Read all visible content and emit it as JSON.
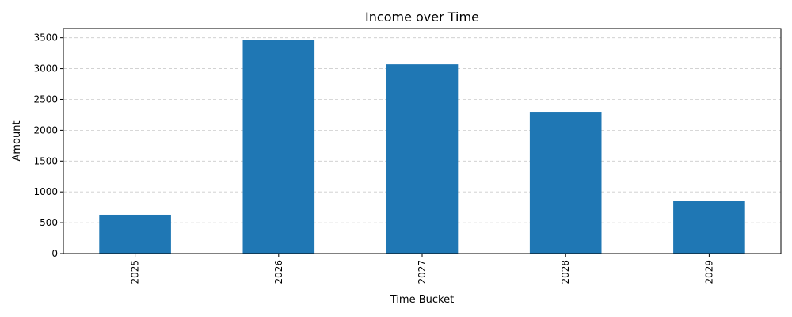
{
  "chart_data": {
    "type": "bar",
    "title": "Income over Time",
    "xlabel": "Time Bucket",
    "ylabel": "Amount",
    "categories": [
      "2025",
      "2026",
      "2027",
      "2028",
      "2029"
    ],
    "values": [
      630,
      3470,
      3070,
      2300,
      850
    ],
    "ylim": [
      0,
      3650
    ],
    "yticks": [
      0,
      500,
      1000,
      1500,
      2000,
      2500,
      3000,
      3500
    ],
    "ytick_labels": [
      "0",
      "500",
      "1000",
      "1500",
      "2000",
      "2500",
      "3000",
      "3500"
    ],
    "grid": "y-dashed",
    "legend": "none",
    "bar_color": "#1f77b4",
    "grid_color": "#cccccc"
  }
}
